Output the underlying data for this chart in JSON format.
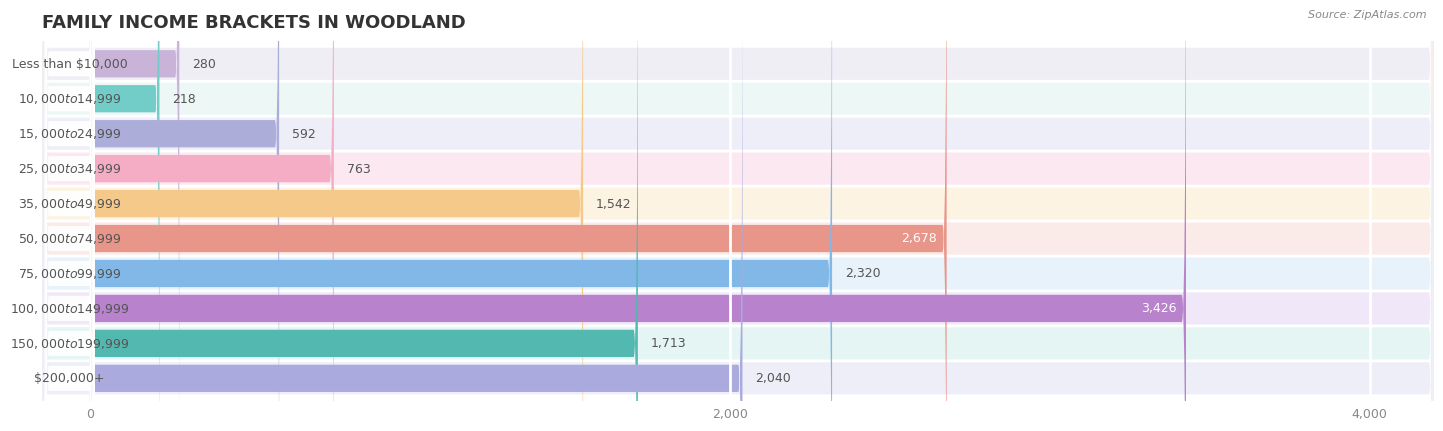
{
  "title": "FAMILY INCOME BRACKETS IN WOODLAND",
  "source": "Source: ZipAtlas.com",
  "categories": [
    "Less than $10,000",
    "$10,000 to $14,999",
    "$15,000 to $24,999",
    "$25,000 to $34,999",
    "$35,000 to $49,999",
    "$50,000 to $74,999",
    "$75,000 to $99,999",
    "$100,000 to $149,999",
    "$150,000 to $199,999",
    "$200,000+"
  ],
  "values": [
    280,
    218,
    592,
    763,
    1542,
    2678,
    2320,
    3426,
    1713,
    2040
  ],
  "bar_colors": [
    "#c9b3d9",
    "#72cdc8",
    "#adadd9",
    "#f5adc6",
    "#f5c98a",
    "#e8958a",
    "#82b8e8",
    "#b882cc",
    "#52b8b0",
    "#aaaadf"
  ],
  "row_bg_colors": [
    "#f0eef5",
    "#edf7f6",
    "#eeeef8",
    "#fce8f0",
    "#fdf3e3",
    "#faeae8",
    "#e8f2fa",
    "#f0e8f8",
    "#e5f5f3",
    "#eeeef8"
  ],
  "xlim": [
    -150,
    4200
  ],
  "xlim_display": [
    0,
    4200
  ],
  "xticks": [
    0,
    2000,
    4000
  ],
  "background_color": "#ffffff",
  "title_fontsize": 13,
  "label_fontsize": 9,
  "value_fontsize": 9,
  "value_inside_threshold": 2500
}
